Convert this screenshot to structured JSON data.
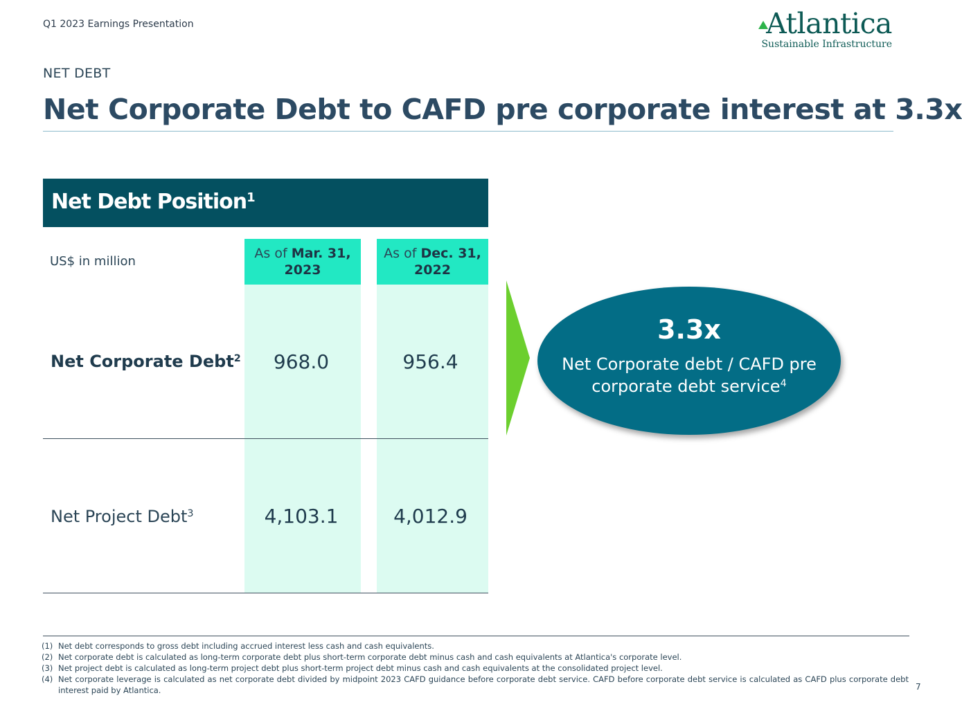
{
  "header": {
    "presentation": "Q1 2023 Earnings Presentation",
    "logo_name": "Atlantica",
    "logo_tagline": "Sustainable Infrastructure"
  },
  "section_label": "NET DEBT",
  "title": "Net Corporate Debt to CAFD pre corporate interest at 3.3x",
  "table": {
    "header": "Net Debt Position",
    "header_note": "1",
    "units": "US$ in million",
    "columns": [
      {
        "prefix": "As of",
        "bold": "Mar. 31,",
        "year": "2023"
      },
      {
        "prefix": "As of",
        "bold": "Dec. 31,",
        "year": "2022"
      }
    ],
    "rows": [
      {
        "label": "Net Corporate Debt",
        "note": "2",
        "values": [
          "968.0",
          "956.4"
        ]
      },
      {
        "label": "Net Project Debt",
        "note": "3",
        "values": [
          "4,103.1",
          "4,012.9"
        ]
      }
    ]
  },
  "callout": {
    "value": "3.3x",
    "description": "Net Corporate debt / CAFD pre corporate debt service",
    "note": "4"
  },
  "footnotes": [
    {
      "num": "(1)",
      "text": "Net debt corresponds to gross debt including accrued interest less cash and cash equivalents."
    },
    {
      "num": "(2)",
      "text": "Net corporate debt is calculated as long-term corporate debt plus short-term corporate debt minus cash and cash equivalents at Atlantica's corporate level."
    },
    {
      "num": "(3)",
      "text": "Net project debt is calculated as long-term project debt plus short-term project debt minus cash and cash equivalents at the consolidated project level."
    },
    {
      "num": "(4)",
      "text": "Net corporate leverage is calculated as net corporate debt divided by midpoint 2023 CAFD guidance before corporate debt service. CAFD before corporate debt service is calculated as CAFD plus corporate debt interest paid by Atlantica."
    }
  ],
  "page_number": "7",
  "colors": {
    "table_header": "#045060",
    "column_header": "#22e8c3",
    "column_fill": "#dcfbf1",
    "arrow": "#6ccf2e",
    "bubble": "#036d86"
  }
}
